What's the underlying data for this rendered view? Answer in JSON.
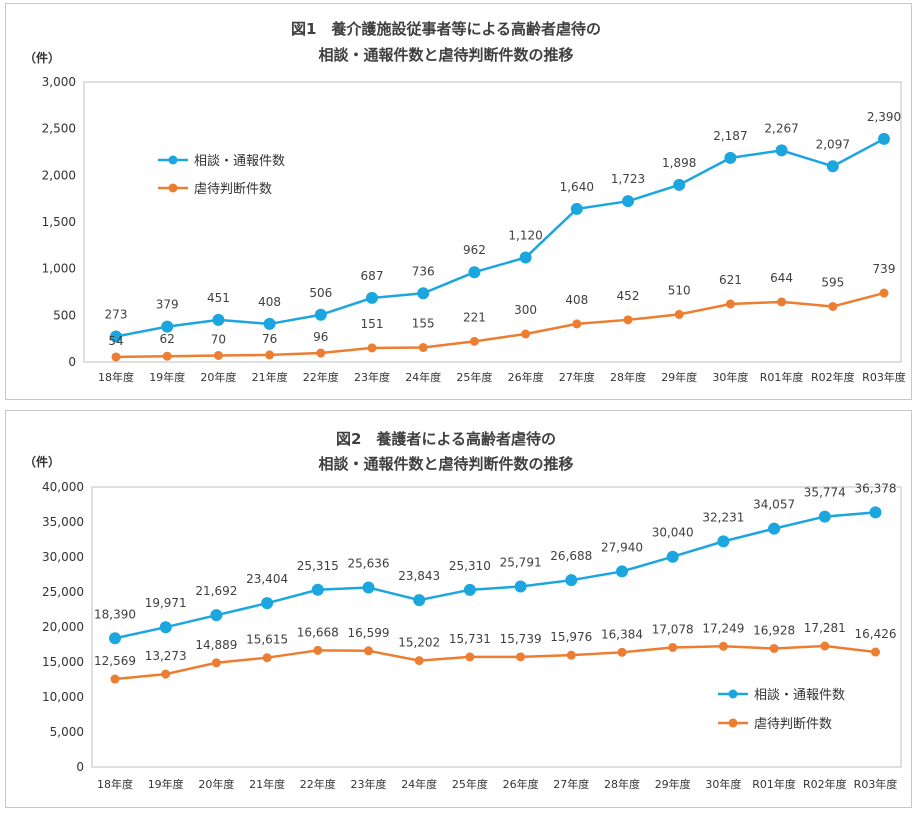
{
  "chart_data": [
    {
      "type": "line",
      "title": "図1　養介護施設従事者等による高齢者虐待の",
      "subtitle": "相談・通報件数と虐待判断件数の推移",
      "ylabel": "（件）",
      "ylim": [
        0,
        3000
      ],
      "yticks": [
        "0",
        "500",
        "1,000",
        "1,500",
        "2,000",
        "2,500",
        "3,000"
      ],
      "ytick_values": [
        0,
        500,
        1000,
        1500,
        2000,
        2500,
        3000
      ],
      "legend_position": "top-left",
      "categories": [
        "18年度",
        "19年度",
        "20年度",
        "21年度",
        "22年度",
        "23年度",
        "24年度",
        "25年度",
        "26年度",
        "27年度",
        "28年度",
        "29年度",
        "30年度",
        "R01年度",
        "R02年度",
        "R03年度"
      ],
      "series": [
        {
          "name": "相談・通報件数",
          "color": "#1ca6e0",
          "values": [
            273,
            379,
            451,
            408,
            506,
            687,
            736,
            962,
            1120,
            1640,
            1723,
            1898,
            2187,
            2267,
            2097,
            2390
          ],
          "labels": [
            "273",
            "379",
            "451",
            "408",
            "506",
            "687",
            "736",
            "962",
            "1,120",
            "1,640",
            "1,723",
            "1,898",
            "2,187",
            "2,267",
            "2,097",
            "2,390"
          ]
        },
        {
          "name": "虐待判断件数",
          "color": "#ed7d31",
          "values": [
            54,
            62,
            70,
            76,
            96,
            151,
            155,
            221,
            300,
            408,
            452,
            510,
            621,
            644,
            595,
            739
          ],
          "labels": [
            "54",
            "62",
            "70",
            "76",
            "96",
            "151",
            "155",
            "221",
            "300",
            "408",
            "452",
            "510",
            "621",
            "644",
            "595",
            "739"
          ]
        }
      ]
    },
    {
      "type": "line",
      "title": "図2　養護者による高齢者虐待の",
      "subtitle": "相談・通報件数と虐待判断件数の推移",
      "ylabel": "（件）",
      "ylim": [
        0,
        40000
      ],
      "yticks": [
        "0",
        "5,000",
        "10,000",
        "15,000",
        "20,000",
        "25,000",
        "30,000",
        "35,000",
        "40,000"
      ],
      "ytick_values": [
        0,
        5000,
        10000,
        15000,
        20000,
        25000,
        30000,
        35000,
        40000
      ],
      "legend_position": "bottom-right",
      "categories": [
        "18年度",
        "19年度",
        "20年度",
        "21年度",
        "22年度",
        "23年度",
        "24年度",
        "25年度",
        "26年度",
        "27年度",
        "28年度",
        "29年度",
        "30年度",
        "R01年度",
        "R02年度",
        "R03年度"
      ],
      "series": [
        {
          "name": "相談・通報件数",
          "color": "#1ca6e0",
          "values": [
            18390,
            19971,
            21692,
            23404,
            25315,
            25636,
            23843,
            25310,
            25791,
            26688,
            27940,
            30040,
            32231,
            34057,
            35774,
            36378
          ],
          "labels": [
            "18,390",
            "19,971",
            "21,692",
            "23,404",
            "25,315",
            "25,636",
            "23,843",
            "25,310",
            "25,791",
            "26,688",
            "27,940",
            "30,040",
            "32,231",
            "34,057",
            "35,774",
            "36,378"
          ]
        },
        {
          "name": "虐待判断件数",
          "color": "#ed7d31",
          "values": [
            12569,
            13273,
            14889,
            15615,
            16668,
            16599,
            15202,
            15731,
            15739,
            15976,
            16384,
            17078,
            17249,
            16928,
            17281,
            16426
          ],
          "labels": [
            "12,569",
            "13,273",
            "14,889",
            "15,615",
            "16,668",
            "16,599",
            "15,202",
            "15,731",
            "15,739",
            "15,976",
            "16,384",
            "17,078",
            "17,249",
            "16,928",
            "17,281",
            "16,426"
          ]
        }
      ]
    }
  ]
}
